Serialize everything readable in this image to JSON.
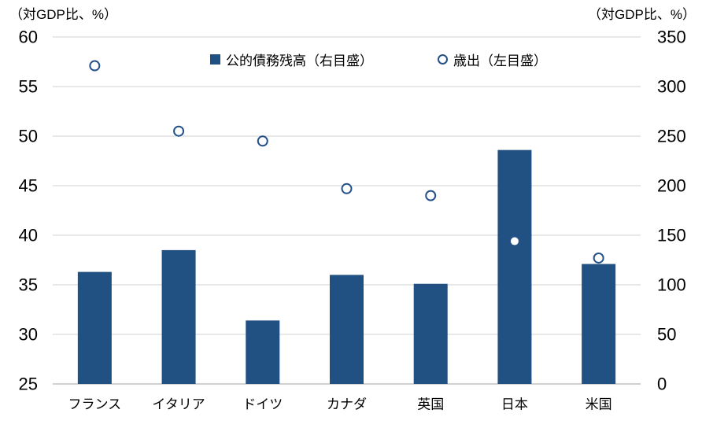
{
  "axes": {
    "left_unit": "（対GDP比、%）",
    "right_unit": "（対GDP比、%）"
  },
  "legend": {
    "items": [
      {
        "label": "公的債務残高（右目盛）",
        "marker": "filled-square"
      },
      {
        "label": "歳出（左目盛）",
        "marker": "open-circle"
      }
    ]
  },
  "chart_data": {
    "type": "bar",
    "subtype": "dual-axis bar + scatter markers",
    "categories": [
      "フランス",
      "イタリア",
      "ドイツ",
      "カナダ",
      "英国",
      "日本",
      "米国"
    ],
    "series": [
      {
        "name": "公的債務残高（右目盛）",
        "type": "bar",
        "axis": "right",
        "values": [
          113,
          135,
          64,
          110,
          101,
          236,
          121
        ]
      },
      {
        "name": "歳出（左目盛）",
        "type": "scatter",
        "axis": "left",
        "values": [
          57.1,
          50.5,
          49.5,
          44.7,
          44.0,
          39.4,
          37.7
        ]
      }
    ],
    "left_axis": {
      "label": "（対GDP比、%）",
      "min": 25,
      "max": 60,
      "ticks": [
        60,
        55,
        50,
        45,
        40,
        35,
        30,
        25
      ]
    },
    "right_axis": {
      "label": "（対GDP比、%）",
      "min": 0,
      "max": 350,
      "ticks": [
        350,
        300,
        250,
        200,
        150,
        100,
        50,
        0
      ]
    },
    "grid": true,
    "legend_position": "top-center",
    "colors": {
      "bar": "#215083",
      "marker_stroke": "#24518A",
      "marker_fill": "#FFFFFF",
      "gridline": "#D9D9D9",
      "baseline": "#D0D0D0",
      "text": "#000000",
      "background": "#FFFFFF"
    }
  }
}
